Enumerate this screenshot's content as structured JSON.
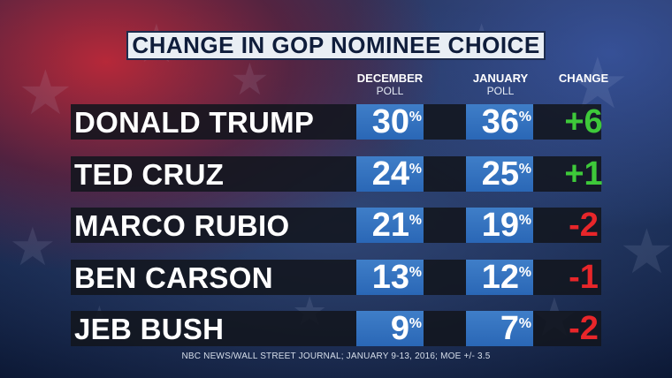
{
  "title": "CHANGE IN GOP NOMINEE CHOICE",
  "columns": {
    "december": {
      "bold": "DECEMBER",
      "sub": "POLL"
    },
    "january": {
      "bold": "JANUARY",
      "sub": "POLL"
    },
    "change": "CHANGE"
  },
  "percent_symbol": "%",
  "colors": {
    "positive": "#3ec93a",
    "negative": "#e8262a",
    "cell": "#2f6fbe"
  },
  "chart_data": {
    "type": "table",
    "title": "CHANGE IN GOP NOMINEE CHOICE",
    "columns": [
      "DECEMBER POLL",
      "JANUARY POLL",
      "CHANGE"
    ],
    "rows": [
      {
        "name": "DONALD TRUMP",
        "december": "30",
        "january": "36",
        "change": "+6"
      },
      {
        "name": "TED CRUZ",
        "december": "24",
        "january": "25",
        "change": "+1"
      },
      {
        "name": "MARCO RUBIO",
        "december": "21",
        "january": "19",
        "change": "-2"
      },
      {
        "name": "BEN CARSON",
        "december": "13",
        "january": "12",
        "change": "-1"
      },
      {
        "name": "JEB BUSH",
        "december": "9",
        "january": "7",
        "change": "-2"
      }
    ]
  },
  "footer": "NBC NEWS/WALL STREET JOURNAL; JANUARY 9-13, 2016; MOE +/- 3.5"
}
